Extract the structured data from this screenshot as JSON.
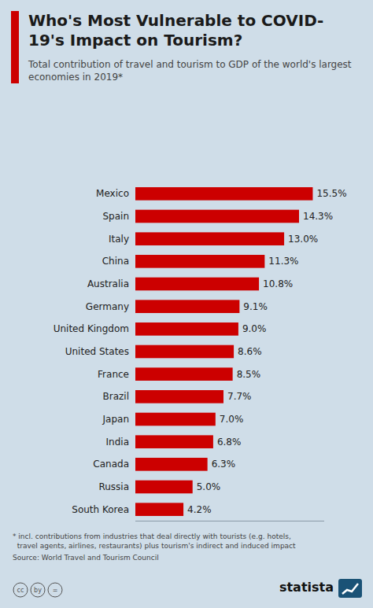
{
  "chart_data": {
    "type": "bar",
    "orientation": "horizontal",
    "title": "Who's Most Vulnerable to COVID-19's Impact on Tourism?",
    "subtitle": "Total contribution of travel and tourism to GDP of the world's largest economies in 2019*",
    "categories": [
      "Mexico",
      "Spain",
      "Italy",
      "China",
      "Australia",
      "Germany",
      "United Kingdom",
      "United States",
      "France",
      "Brazil",
      "Japan",
      "India",
      "Canada",
      "Russia",
      "South Korea"
    ],
    "values": [
      15.5,
      14.3,
      13.0,
      11.3,
      10.8,
      9.1,
      9.0,
      8.6,
      8.5,
      7.7,
      7.0,
      6.8,
      6.3,
      5.0,
      4.2
    ],
    "value_labels": [
      "15.5%",
      "14.3%",
      "13.0%",
      "11.3%",
      "10.8%",
      "9.1%",
      "9.0%",
      "8.6%",
      "8.5%",
      "7.7%",
      "7.0%",
      "6.8%",
      "6.3%",
      "5.0%",
      "4.2%"
    ],
    "color": "#CC0000",
    "xlim": [
      0,
      16.5
    ],
    "grid": false,
    "data_labels": true,
    "tick_labels": "y",
    "annotations": [
      "* incl. contributions from industries that deal directly with tourists (e.g. hotels,",
      "  travel agents, airlines, restaurants) plus tourism's indirect and induced impact",
      "Source: World Travel and Tourism Council",
      "statista",
      "cc",
      "by",
      "="
    ]
  }
}
